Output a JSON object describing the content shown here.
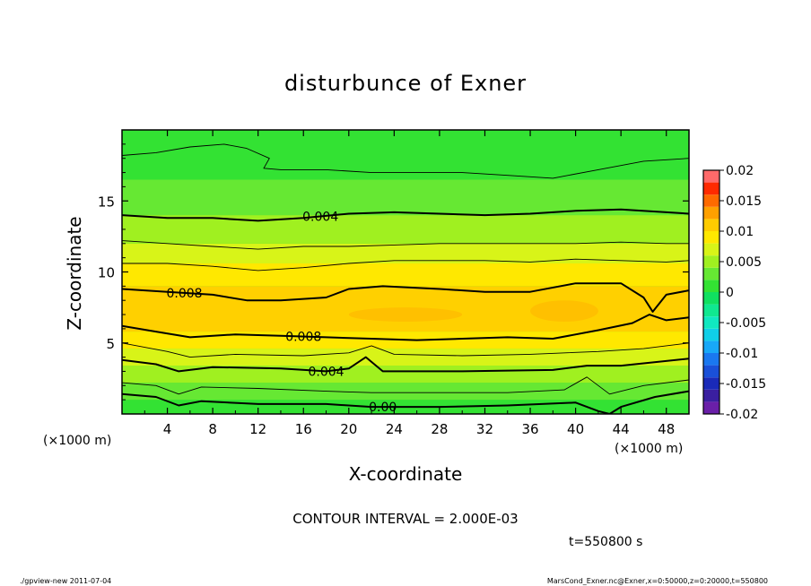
{
  "chart_data": {
    "type": "heatmap",
    "title": "disturbunce of Exner",
    "xlabel": "X-coordinate",
    "ylabel": "Z-coordinate",
    "x_unit_left": "(×1000 m)",
    "x_unit_right": "(×1000 m)",
    "xlim": [
      0,
      50
    ],
    "ylim": [
      0,
      20
    ],
    "xticks": [
      "4",
      "8",
      "12",
      "16",
      "20",
      "24",
      "28",
      "32",
      "36",
      "40",
      "44",
      "48"
    ],
    "yticks": [
      "5",
      "10",
      "15"
    ],
    "colorbar": {
      "labels": [
        "0.02",
        "0.015",
        "0.01",
        "0.005",
        "0",
        "-0.005",
        "-0.01",
        "-0.015",
        "-0.02"
      ],
      "levels": [
        -0.02,
        -0.018,
        -0.016,
        -0.014,
        -0.012,
        -0.01,
        -0.008,
        -0.006,
        -0.004,
        -0.002,
        0,
        0.002,
        0.004,
        0.006,
        0.008,
        0.01,
        0.012,
        0.014,
        0.016,
        0.018,
        0.02
      ],
      "colors": [
        "#6a1fa8",
        "#3a1fa0",
        "#1a2ab8",
        "#1a50d8",
        "#1a78f0",
        "#18a8f8",
        "#10cfe8",
        "#10e8c0",
        "#10e890",
        "#10e060",
        "#33e233",
        "#66e833",
        "#a0f020",
        "#d8f418",
        "#ffe800",
        "#ffcc00",
        "#ffa000",
        "#ff6a00",
        "#ff2a00",
        "#ff6a6a"
      ]
    },
    "field_bands": [
      {
        "z": [
          0,
          1.0
        ],
        "value": 0.0,
        "color": "#33e233"
      },
      {
        "z": [
          1.0,
          2.2
        ],
        "value": 0.002,
        "color": "#66e833"
      },
      {
        "z": [
          2.2,
          3.4
        ],
        "value": 0.004,
        "color": "#a0f020"
      },
      {
        "z": [
          3.4,
          4.6
        ],
        "value": 0.006,
        "color": "#d8f418"
      },
      {
        "z": [
          4.6,
          5.8
        ],
        "value": 0.007,
        "color": "#ffe800"
      },
      {
        "z": [
          5.8,
          9.0
        ],
        "value": 0.009,
        "color": "#ffd000"
      },
      {
        "z": [
          9.0,
          10.6
        ],
        "value": 0.007,
        "color": "#ffe800"
      },
      {
        "z": [
          10.6,
          12.0
        ],
        "value": 0.006,
        "color": "#d8f418"
      },
      {
        "z": [
          12.0,
          14.0
        ],
        "value": 0.005,
        "color": "#a0f020"
      },
      {
        "z": [
          14.0,
          16.5
        ],
        "value": 0.003,
        "color": "#66e833"
      },
      {
        "z": [
          16.5,
          20.0
        ],
        "value": 0.001,
        "color": "#33e233"
      }
    ],
    "maxima": [
      {
        "x": [
          20,
          30
        ],
        "z": [
          6.5,
          7.5
        ],
        "value": 0.0105,
        "color": "#ffc000"
      },
      {
        "x": [
          36,
          42
        ],
        "z": [
          6.5,
          8.0
        ],
        "value": 0.0105,
        "color": "#ffc000"
      }
    ],
    "contours": [
      {
        "value": 0.0,
        "label": "0.00",
        "label_x": 23,
        "bold": true,
        "pts": [
          [
            0,
            1.4
          ],
          [
            3,
            1.2
          ],
          [
            5,
            0.6
          ],
          [
            7,
            0.9
          ],
          [
            12,
            0.7
          ],
          [
            18,
            0.7
          ],
          [
            22,
            0.5
          ],
          [
            28,
            0.5
          ],
          [
            34,
            0.6
          ],
          [
            40,
            0.8
          ],
          [
            42,
            0.2
          ],
          [
            43,
            0.0
          ],
          [
            44,
            0.5
          ],
          [
            47,
            1.2
          ],
          [
            50,
            1.6
          ]
        ]
      },
      {
        "value": 0.002,
        "label": "",
        "bold": false,
        "pts": [
          [
            0,
            2.2
          ],
          [
            3,
            2.0
          ],
          [
            5,
            1.4
          ],
          [
            7,
            1.9
          ],
          [
            12,
            1.8
          ],
          [
            18,
            1.6
          ],
          [
            22,
            1.5
          ],
          [
            28,
            1.5
          ],
          [
            34,
            1.5
          ],
          [
            39,
            1.7
          ],
          [
            41,
            2.6
          ],
          [
            43,
            1.4
          ],
          [
            46,
            2.0
          ],
          [
            50,
            2.4
          ]
        ]
      },
      {
        "value": 0.004,
        "label": "0.004",
        "label_x": 18,
        "bold": true,
        "pts": [
          [
            0,
            3.8
          ],
          [
            3,
            3.5
          ],
          [
            5,
            3.0
          ],
          [
            8,
            3.3
          ],
          [
            14,
            3.2
          ],
          [
            18,
            3.0
          ],
          [
            20,
            3.2
          ],
          [
            21.5,
            4.0
          ],
          [
            23,
            3.0
          ],
          [
            30,
            3.0
          ],
          [
            38,
            3.1
          ],
          [
            41,
            3.4
          ],
          [
            44,
            3.4
          ],
          [
            50,
            3.9
          ]
        ]
      },
      {
        "value": 0.006,
        "label": "",
        "bold": false,
        "pts": [
          [
            0,
            5.0
          ],
          [
            4,
            4.4
          ],
          [
            6,
            4.0
          ],
          [
            10,
            4.2
          ],
          [
            16,
            4.1
          ],
          [
            20,
            4.3
          ],
          [
            22,
            4.8
          ],
          [
            24,
            4.2
          ],
          [
            30,
            4.1
          ],
          [
            36,
            4.2
          ],
          [
            42,
            4.4
          ],
          [
            46,
            4.6
          ],
          [
            50,
            5.0
          ]
        ]
      },
      {
        "value": 0.008,
        "label": "0.008",
        "label_x": 16,
        "bold": true,
        "pts": [
          [
            0,
            6.2
          ],
          [
            3,
            5.8
          ],
          [
            6,
            5.4
          ],
          [
            10,
            5.6
          ],
          [
            14,
            5.5
          ],
          [
            18,
            5.4
          ],
          [
            22,
            5.3
          ],
          [
            26,
            5.2
          ],
          [
            30,
            5.3
          ],
          [
            34,
            5.4
          ],
          [
            38,
            5.3
          ],
          [
            42,
            5.9
          ],
          [
            45,
            6.4
          ],
          [
            46.5,
            7.0
          ],
          [
            48,
            6.6
          ],
          [
            50,
            6.8
          ]
        ]
      },
      {
        "value": 0.008,
        "label": "0.008",
        "label_x": 5.5,
        "bold": true,
        "pts": [
          [
            0,
            8.8
          ],
          [
            4,
            8.6
          ],
          [
            8,
            8.4
          ],
          [
            11,
            8.0
          ],
          [
            14,
            8.0
          ],
          [
            18,
            8.2
          ],
          [
            20,
            8.8
          ],
          [
            23,
            9.0
          ],
          [
            28,
            8.8
          ],
          [
            32,
            8.6
          ],
          [
            36,
            8.6
          ],
          [
            40,
            9.2
          ],
          [
            44,
            9.2
          ],
          [
            46,
            8.2
          ],
          [
            46.8,
            7.2
          ],
          [
            48,
            8.4
          ],
          [
            50,
            8.7
          ]
        ]
      },
      {
        "value": 0.006,
        "label": "",
        "bold": false,
        "pts": [
          [
            0,
            10.6
          ],
          [
            4,
            10.6
          ],
          [
            8,
            10.4
          ],
          [
            12,
            10.1
          ],
          [
            16,
            10.3
          ],
          [
            20,
            10.6
          ],
          [
            24,
            10.8
          ],
          [
            28,
            10.8
          ],
          [
            32,
            10.8
          ],
          [
            36,
            10.7
          ],
          [
            40,
            10.9
          ],
          [
            44,
            10.8
          ],
          [
            48,
            10.7
          ],
          [
            50,
            10.8
          ]
        ]
      },
      {
        "value": 0.005,
        "label": "",
        "bold": false,
        "pts": [
          [
            0,
            12.2
          ],
          [
            4,
            12.0
          ],
          [
            8,
            11.8
          ],
          [
            12,
            11.6
          ],
          [
            16,
            11.8
          ],
          [
            20,
            11.8
          ],
          [
            24,
            11.9
          ],
          [
            28,
            12.0
          ],
          [
            32,
            12.0
          ],
          [
            36,
            12.0
          ],
          [
            40,
            12.0
          ],
          [
            44,
            12.1
          ],
          [
            48,
            12.0
          ],
          [
            50,
            12.0
          ]
        ]
      },
      {
        "value": 0.004,
        "label": "0.004",
        "label_x": 17.5,
        "bold": true,
        "pts": [
          [
            0,
            14.0
          ],
          [
            4,
            13.8
          ],
          [
            8,
            13.8
          ],
          [
            12,
            13.6
          ],
          [
            16,
            13.8
          ],
          [
            20,
            14.1
          ],
          [
            24,
            14.2
          ],
          [
            28,
            14.1
          ],
          [
            32,
            14.0
          ],
          [
            36,
            14.1
          ],
          [
            40,
            14.3
          ],
          [
            44,
            14.4
          ],
          [
            48,
            14.2
          ],
          [
            50,
            14.1
          ]
        ]
      },
      {
        "value": 0.002,
        "label": "",
        "bold": false,
        "pts": [
          [
            0,
            18.2
          ],
          [
            3,
            18.4
          ],
          [
            6,
            18.8
          ],
          [
            9,
            19.0
          ],
          [
            11,
            18.7
          ],
          [
            13,
            18.0
          ],
          [
            12.5,
            17.3
          ],
          [
            14,
            17.2
          ],
          [
            18,
            17.2
          ],
          [
            22,
            17.0
          ],
          [
            26,
            17.0
          ],
          [
            30,
            17.0
          ],
          [
            34,
            16.8
          ],
          [
            38,
            16.6
          ],
          [
            42,
            17.2
          ],
          [
            46,
            17.8
          ],
          [
            50,
            18.0
          ]
        ]
      }
    ],
    "contour_interval": "CONTOUR INTERVAL = 2.000E-03",
    "time_label": "t=550800 s"
  },
  "footer": {
    "left": "./gpview-new  2011-07-04",
    "right": "MarsCond_Exner.nc@Exner,x=0:50000,z=0:20000,t=550800"
  }
}
